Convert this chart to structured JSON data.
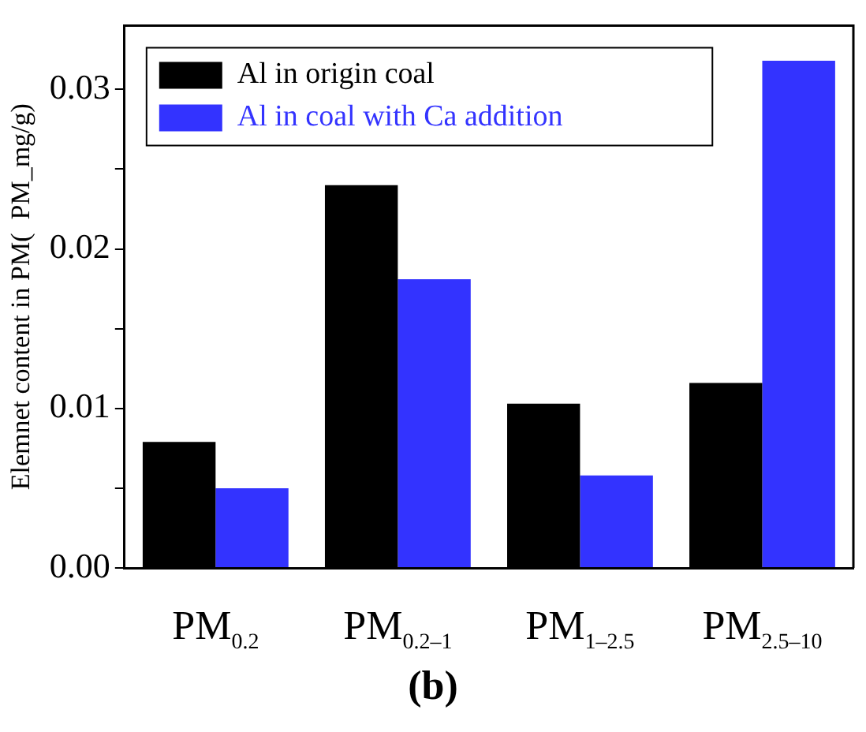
{
  "chart_data": {
    "type": "bar",
    "ylabel": "Elemnet content in PM(  PM_mg/g)",
    "categories": [
      "PM$_{0.2}$",
      "PM$_{0.2–1}$",
      "PM$_{1–2.5}$",
      "PM$_{2.5–10}$"
    ],
    "series": [
      {
        "name": "Al in origin coal",
        "color": "#000000",
        "values": [
          0.0079,
          0.024,
          0.0103,
          0.0116
        ]
      },
      {
        "name": "Al in coal with Ca addition",
        "color": "#3333ff",
        "values": [
          0.005,
          0.0181,
          0.0058,
          0.0318
        ]
      }
    ],
    "ylim": [
      0,
      0.034
    ],
    "yticks": [
      {
        "value": 0,
        "label": "0.00"
      },
      {
        "value": 0.005,
        "label": null
      },
      0.01,
      {
        "value": 0.015,
        "label": null
      },
      0.02,
      {
        "value": 0.025,
        "label": null
      },
      0.03
    ],
    "grid": false,
    "legend": "top left",
    "annotations": [
      "(b)"
    ]
  }
}
